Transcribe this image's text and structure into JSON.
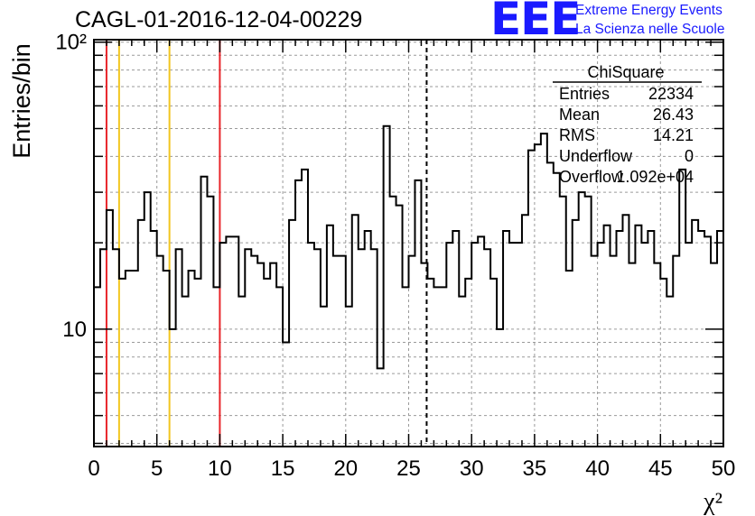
{
  "header": {
    "run_title": "CAGL-01-2016-12-04-00229",
    "logo_mark": "EEE",
    "logo_line1": "Extreme Energy Events",
    "logo_line2": "La Scienza nelle Scuole"
  },
  "stats_box": {
    "title": "ChiSquare",
    "rows": [
      {
        "label": "Entries",
        "value": "22334"
      },
      {
        "label": "Mean",
        "value": "26.43"
      },
      {
        "label": "RMS",
        "value": "14.21"
      },
      {
        "label": "Underflow",
        "value": "0"
      },
      {
        "label": "Overflow",
        "value": "1.092e+04"
      }
    ]
  },
  "colors": {
    "histogram": "#000000",
    "red_line": "#e8242a",
    "orange_line": "#f2c61f",
    "grid": "#9a9a9a",
    "logo": "#1a1aff"
  },
  "chart_data": {
    "type": "histogram",
    "title": "CAGL-01-2016-12-04-00229",
    "xlabel": "χ²",
    "ylabel": "Entries/bin",
    "xlim": [
      0,
      50
    ],
    "ylim": [
      3.9,
      102
    ],
    "yscale": "log",
    "grid": true,
    "bin_width": 0.5,
    "x_ticks": [
      "0",
      "5",
      "10",
      "15",
      "20",
      "25",
      "30",
      "35",
      "40",
      "45",
      "50"
    ],
    "y_ticks": [
      {
        "value": 10,
        "label": "10"
      },
      {
        "value": 100,
        "label": "10²"
      }
    ],
    "values": [
      14,
      19,
      26,
      19,
      15,
      16,
      16,
      24,
      30,
      22,
      18,
      16,
      10,
      19,
      13,
      16,
      15,
      34,
      29,
      14,
      20,
      21,
      21,
      13,
      19,
      18,
      17,
      15,
      17,
      14,
      9,
      24,
      33,
      36,
      20,
      19,
      12,
      23,
      18,
      18,
      12,
      25,
      19,
      22,
      19,
      7.3,
      51,
      29,
      27,
      14,
      18,
      33,
      17,
      15,
      14,
      14,
      20,
      22,
      13,
      15,
      20,
      21,
      19,
      15,
      10,
      22,
      20,
      20,
      25,
      42,
      44,
      48,
      38,
      35,
      29,
      16,
      24,
      30,
      29,
      18,
      20,
      23,
      18,
      22,
      25,
      17,
      23,
      20,
      22,
      17,
      15,
      13,
      18,
      36,
      20,
      24,
      22,
      21,
      17,
      22
    ],
    "vertical_lines": [
      {
        "x": 1,
        "color": "red",
        "style": "solid"
      },
      {
        "x": 2,
        "color": "orange",
        "style": "solid"
      },
      {
        "x": 6,
        "color": "orange",
        "style": "solid"
      },
      {
        "x": 10,
        "color": "red",
        "style": "solid"
      },
      {
        "x": 26.43,
        "color": "black",
        "style": "dashed"
      }
    ]
  }
}
